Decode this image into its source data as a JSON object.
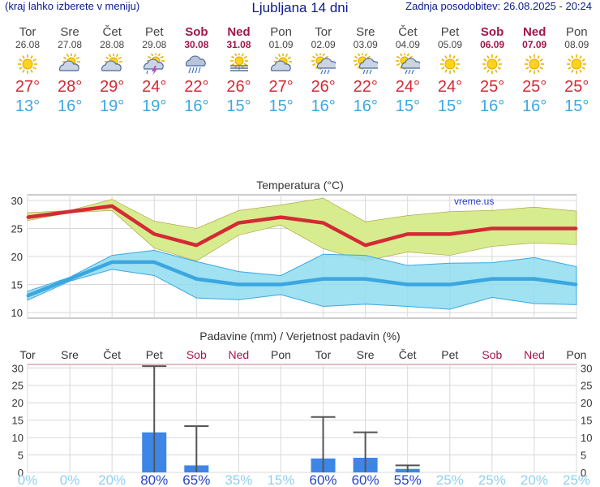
{
  "header": {
    "left_note": "(kraj lahko izberete v meniju)",
    "title": "Ljubljana 14 dni",
    "updated": "Zadnja posodobitev: 26.08.2025 - 20:24"
  },
  "days": [
    {
      "name": "Tor",
      "date": "26.08",
      "weekend": false,
      "icon": "sun-icon",
      "tmax": "27°",
      "tmin": "13°"
    },
    {
      "name": "Sre",
      "date": "27.08",
      "weekend": false,
      "icon": "partly-cloudy-icon",
      "tmax": "28°",
      "tmin": "16°"
    },
    {
      "name": "Čet",
      "date": "28.08",
      "weekend": false,
      "icon": "partly-cloudy-icon",
      "tmax": "29°",
      "tmin": "19°"
    },
    {
      "name": "Pet",
      "date": "29.08",
      "weekend": false,
      "icon": "thunderstorm-icon",
      "tmax": "24°",
      "tmin": "19°"
    },
    {
      "name": "Sob",
      "date": "30.08",
      "weekend": true,
      "icon": "cloud-rain-icon",
      "tmax": "22°",
      "tmin": "16°"
    },
    {
      "name": "Ned",
      "date": "31.08",
      "weekend": true,
      "icon": "sun-fog-icon",
      "tmax": "26°",
      "tmin": "15°"
    },
    {
      "name": "Pon",
      "date": "01.09",
      "weekend": false,
      "icon": "partly-cloudy-icon",
      "tmax": "27°",
      "tmin": "15°"
    },
    {
      "name": "Tor",
      "date": "02.09",
      "weekend": false,
      "icon": "sun-cloud-rain-icon",
      "tmax": "26°",
      "tmin": "16°"
    },
    {
      "name": "Sre",
      "date": "03.09",
      "weekend": false,
      "icon": "sun-cloud-rain-icon",
      "tmax": "22°",
      "tmin": "16°"
    },
    {
      "name": "Čet",
      "date": "04.09",
      "weekend": false,
      "icon": "sun-cloud-rain-icon",
      "tmax": "24°",
      "tmin": "15°"
    },
    {
      "name": "Pet",
      "date": "05.09",
      "weekend": false,
      "icon": "sun-icon",
      "tmax": "24°",
      "tmin": "15°"
    },
    {
      "name": "Sob",
      "date": "06.09",
      "weekend": true,
      "icon": "sun-icon",
      "tmax": "25°",
      "tmin": "16°"
    },
    {
      "name": "Ned",
      "date": "07.09",
      "weekend": true,
      "icon": "sun-icon",
      "tmax": "25°",
      "tmin": "16°"
    },
    {
      "name": "Pon",
      "date": "08.09",
      "weekend": false,
      "icon": "sun-icon",
      "tmax": "25°",
      "tmin": "15°"
    }
  ],
  "chart_data": [
    {
      "type": "line",
      "title": "Temperatura (°C)",
      "watermark": "vreme.us",
      "ylim": [
        9,
        31
      ],
      "yticks": [
        10,
        15,
        20,
        25,
        30
      ],
      "grid": true,
      "colors": {
        "max": "#d42a35",
        "min": "#3ba7e0",
        "max_band": "#d6ec8e",
        "min_band": "#8fdcf0",
        "overlap": "#8ad070"
      },
      "series": [
        {
          "name": "max",
          "values": [
            27,
            28,
            29,
            24,
            22,
            26,
            27,
            26,
            22,
            24,
            24,
            25,
            25,
            25
          ],
          "upper": [
            27.8,
            28.2,
            30.2,
            26.3,
            25,
            28.2,
            29.2,
            30.4,
            26.2,
            27.3,
            28,
            28.2,
            28.8,
            28.1
          ],
          "lower": [
            26.4,
            27.8,
            28.2,
            21.5,
            19.2,
            23.8,
            25.6,
            21.4,
            19.2,
            20.8,
            20.2,
            21.8,
            22.4,
            22.1
          ]
        },
        {
          "name": "min",
          "values": [
            13,
            16,
            19,
            19,
            16,
            15,
            15,
            16,
            16,
            15,
            15,
            16,
            16,
            15
          ],
          "upper": [
            13.8,
            16.3,
            20.2,
            21.1,
            19.1,
            17.3,
            16.6,
            20.4,
            20.2,
            18.4,
            18.8,
            18.9,
            19.8,
            18.2
          ],
          "lower": [
            12.2,
            15.6,
            17.7,
            16.6,
            12.6,
            12.3,
            13.2,
            11.1,
            11.5,
            11.1,
            10.6,
            12.7,
            11.6,
            11.4
          ]
        }
      ]
    },
    {
      "type": "bar",
      "title": "Padavine (mm) / Verjetnost padavin (%)",
      "categories": [
        "Tor",
        "Sre",
        "Čet",
        "Pet",
        "Sob",
        "Ned",
        "Pon",
        "Tor",
        "Sre",
        "Čet",
        "Pet",
        "Sob",
        "Ned",
        "Pon"
      ],
      "weekend": [
        false,
        false,
        false,
        false,
        true,
        true,
        false,
        false,
        false,
        false,
        false,
        true,
        true,
        false
      ],
      "values": [
        0,
        0,
        0,
        11.5,
        2,
        0,
        0,
        4,
        4.2,
        1,
        0,
        0,
        0,
        0
      ],
      "err_high": [
        0,
        0,
        0,
        30.5,
        13.3,
        0,
        0,
        15.9,
        11.5,
        2,
        0,
        0,
        0,
        0
      ],
      "probability": [
        "0%",
        "0%",
        "20%",
        "80%",
        "65%",
        "35%",
        "15%",
        "60%",
        "60%",
        "55%",
        "25%",
        "25%",
        "20%",
        "25%"
      ],
      "probability_values": [
        0,
        0,
        20,
        80,
        65,
        35,
        15,
        60,
        60,
        55,
        25,
        25,
        20,
        25
      ],
      "ylim": [
        0,
        31
      ],
      "yticks": [
        0,
        5,
        10,
        15,
        20,
        25,
        30
      ],
      "bar_color": "#3d86e6"
    }
  ]
}
